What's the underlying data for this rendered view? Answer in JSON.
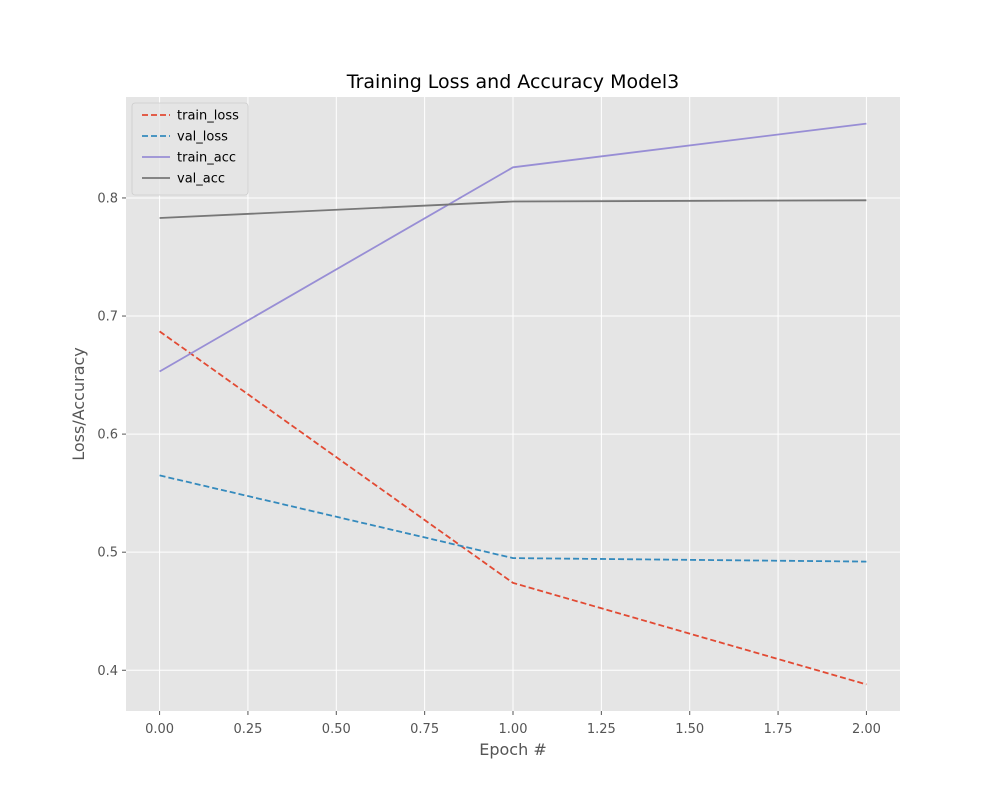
{
  "chart_data": {
    "type": "line",
    "title": "Training Loss and Accuracy Model3",
    "xlabel": "Epoch #",
    "ylabel": "Loss/Accuracy",
    "xlim": [
      -0.095,
      2.095
    ],
    "ylim": [
      0.3655,
      0.8855
    ],
    "xticks": [
      0.0,
      0.25,
      0.5,
      0.75,
      1.0,
      1.25,
      1.5,
      1.75,
      2.0
    ],
    "xtick_labels": [
      "0.00",
      "0.25",
      "0.50",
      "0.75",
      "1.00",
      "1.25",
      "1.50",
      "1.75",
      "2.00"
    ],
    "yticks": [
      0.4,
      0.5,
      0.6,
      0.7,
      0.8
    ],
    "ytick_labels": [
      "0.4",
      "0.5",
      "0.6",
      "0.7",
      "0.8"
    ],
    "grid": true,
    "background": "#e5e5e5",
    "legend_position": "top-left",
    "x": [
      0,
      1,
      2
    ],
    "series": [
      {
        "name": "train_loss",
        "values": [
          0.687,
          0.474,
          0.388
        ],
        "color": "#e24a33",
        "style": "dashed"
      },
      {
        "name": "val_loss",
        "values": [
          0.565,
          0.495,
          0.492
        ],
        "color": "#348abd",
        "style": "dashed"
      },
      {
        "name": "train_acc",
        "values": [
          0.653,
          0.826,
          0.863
        ],
        "color": "#988ed5",
        "style": "solid"
      },
      {
        "name": "val_acc",
        "values": [
          0.783,
          0.797,
          0.798
        ],
        "color": "#777777",
        "style": "solid"
      }
    ]
  }
}
